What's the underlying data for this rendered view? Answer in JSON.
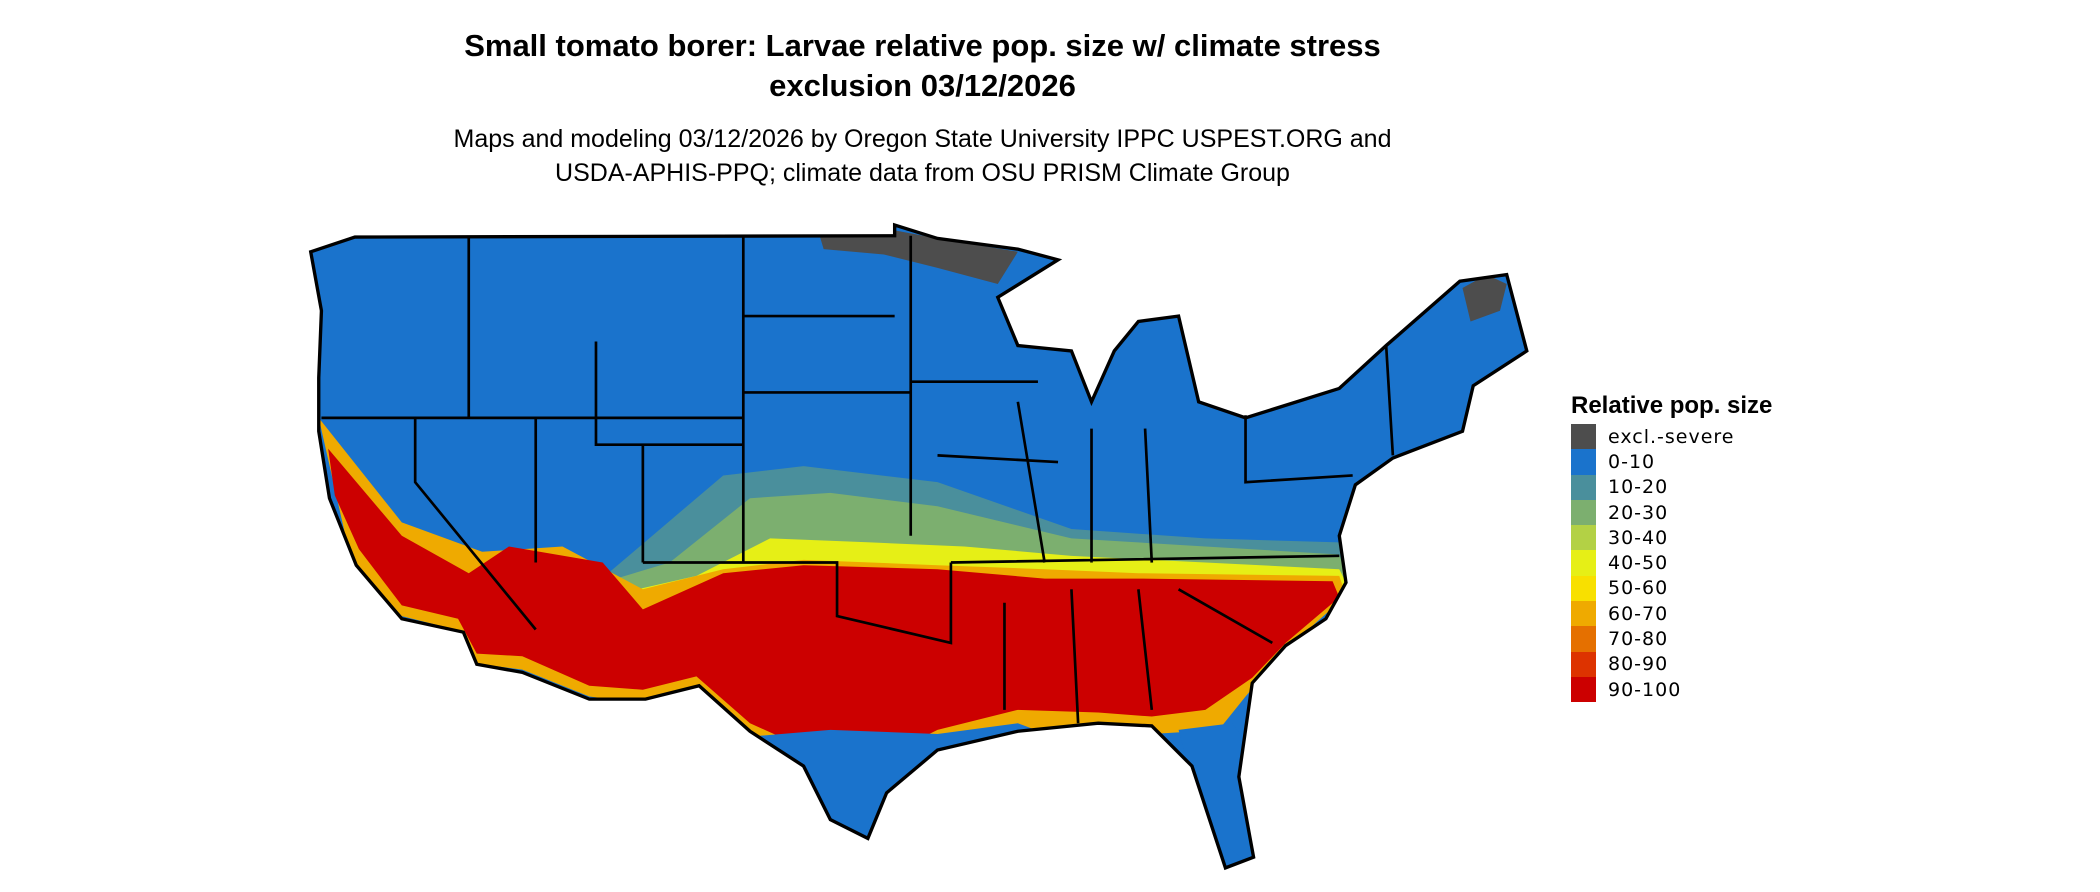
{
  "header": {
    "title_line1": "Small tomato borer: Larvae relative pop. size w/ climate stress",
    "title_line2": "exclusion 03/12/2026",
    "subtitle_line1": "Maps and modeling 03/12/2026 by Oregon State University IPPC USPEST.ORG and",
    "subtitle_line2": "USDA-APHIS-PPQ; climate data from OSU PRISM Climate Group"
  },
  "legend": {
    "title": "Relative pop. size",
    "items": [
      {
        "label": "excl.-severe",
        "color": "#4d4d4d"
      },
      {
        "label": "0-10",
        "color": "#1a73cc"
      },
      {
        "label": "10-20",
        "color": "#4a8f9c"
      },
      {
        "label": "20-30",
        "color": "#7caf6f"
      },
      {
        "label": "30-40",
        "color": "#b3d145"
      },
      {
        "label": "40-50",
        "color": "#e6ef16"
      },
      {
        "label": "50-60",
        "color": "#f8e000"
      },
      {
        "label": "60-70",
        "color": "#efaa00"
      },
      {
        "label": "70-80",
        "color": "#e57000"
      },
      {
        "label": "80-90",
        "color": "#dd3300"
      },
      {
        "label": "90-100",
        "color": "#cc0000"
      }
    ]
  },
  "map": {
    "region": "Contiguous United States",
    "colors": {
      "border": "#000000",
      "background": "#ffffff"
    }
  }
}
